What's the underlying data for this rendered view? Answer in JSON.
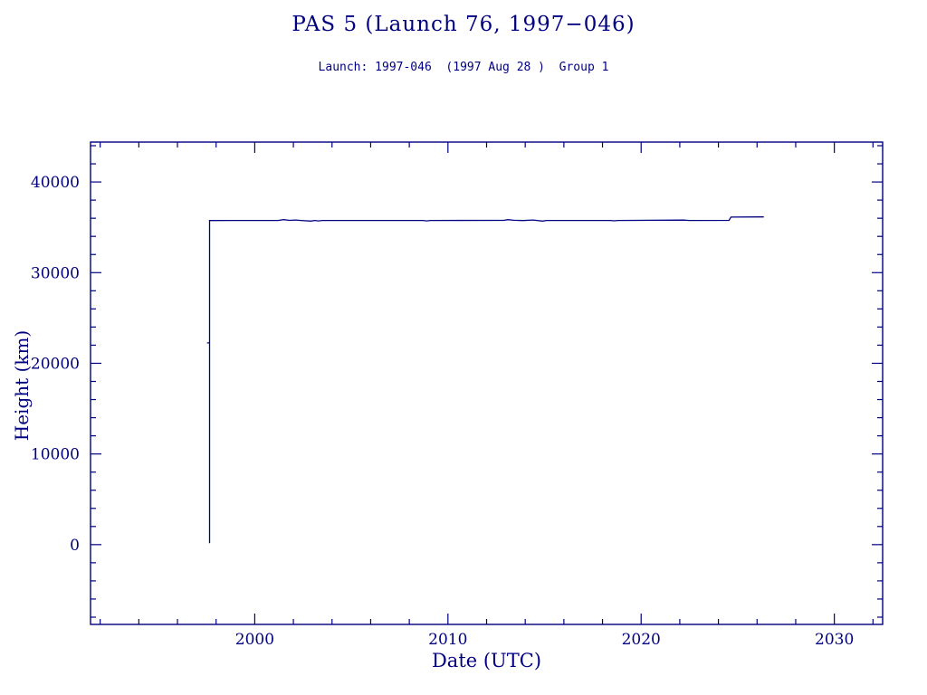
{
  "chart_data": {
    "type": "line",
    "title": "PAS 5 (Launch 76, 1997−046)",
    "subtitle": "Launch: 1997-046  (1997 Aug 28 )  Group 1",
    "xlabel": "Date (UTC)",
    "ylabel": "Height (km)",
    "xlim": [
      1991.5,
      2032.5
    ],
    "ylim": [
      -8800,
      44400
    ],
    "xticks": [
      2000,
      2010,
      2020,
      2030
    ],
    "yticks": [
      0,
      10000,
      20000,
      30000,
      40000
    ],
    "x_minor_step": 2,
    "y_minor_step": 2000,
    "grid": false,
    "legend": "none",
    "accent_color": "#000080",
    "series": [
      {
        "name": "height",
        "color": "#000080",
        "points": [
          [
            1997.53,
            22250
          ],
          [
            1997.66,
            22250
          ],
          [
            1997.66,
            150
          ],
          [
            1997.66,
            35750
          ],
          [
            1999.0,
            35760
          ],
          [
            2001.2,
            35760
          ],
          [
            2001.5,
            35850
          ],
          [
            2001.8,
            35770
          ],
          [
            2002.1,
            35810
          ],
          [
            2002.4,
            35760
          ],
          [
            2002.9,
            35690
          ],
          [
            2003.1,
            35760
          ],
          [
            2003.3,
            35710
          ],
          [
            2003.5,
            35760
          ],
          [
            2008.7,
            35760
          ],
          [
            2008.9,
            35710
          ],
          [
            2009.1,
            35760
          ],
          [
            2012.9,
            35770
          ],
          [
            2013.1,
            35850
          ],
          [
            2013.4,
            35780
          ],
          [
            2013.9,
            35750
          ],
          [
            2014.4,
            35810
          ],
          [
            2014.9,
            35690
          ],
          [
            2015.1,
            35760
          ],
          [
            2018.4,
            35760
          ],
          [
            2018.6,
            35720
          ],
          [
            2018.8,
            35760
          ],
          [
            2022.2,
            35800
          ],
          [
            2022.5,
            35760
          ],
          [
            2024.55,
            35770
          ],
          [
            2024.65,
            36130
          ],
          [
            2026.35,
            36150
          ]
        ]
      }
    ]
  }
}
